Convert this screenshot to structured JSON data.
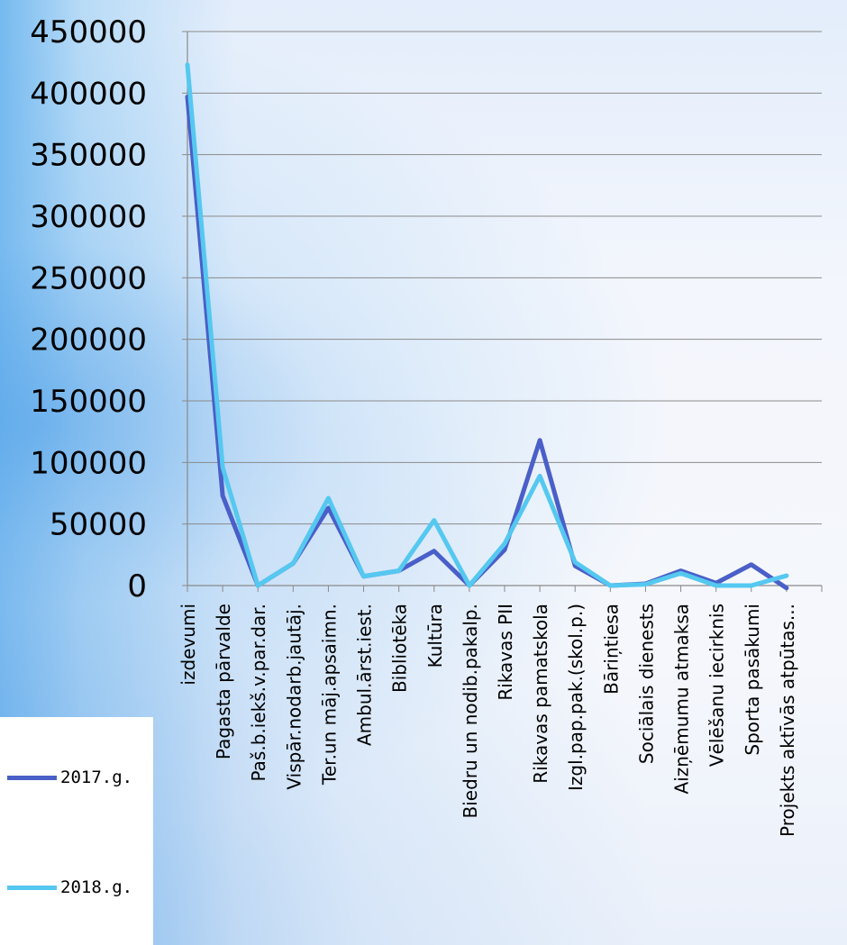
{
  "chart_data": {
    "type": "line",
    "categories": [
      "izdevumi",
      "Pagasta pārvalde",
      "Paš.b.iekš.v.par.dar.",
      "Vispār.nodarb.jautāj.",
      "Ter.un māj.apsaimn.",
      "Ambul.ārst.iest.",
      "Bibliotēka",
      "Kultūra",
      "Biedru un nodib.pakalp.",
      "Rikavas PII",
      "Rikavas pamatskola",
      "Izgl.pap.pak.(skol.p.)",
      "Bāriņtiesa",
      "Sociālais dienests",
      "Aizņēmumu atmaksa",
      "Vēlēšanu iecirknis",
      "Sporta pasākumi",
      "Projekts aktīvās atpūtas..."
    ],
    "series": [
      {
        "name": "2017.g.",
        "color": "#4a5fc8",
        "values": [
          397000,
          73000,
          0,
          18000,
          63000,
          7500,
          12000,
          28000,
          0,
          29000,
          118000,
          16000,
          0,
          1500,
          12000,
          2000,
          17000,
          -2000
        ]
      },
      {
        "name": "2018.g.",
        "color": "#55c8f0",
        "values": [
          423000,
          96000,
          0,
          18000,
          71000,
          7500,
          12000,
          53000,
          0,
          34000,
          89000,
          19000,
          0,
          1000,
          10000,
          0,
          0,
          8000
        ]
      }
    ],
    "y_ticks": [
      "450000",
      "400000",
      "350000",
      "300000",
      "250000",
      "200000",
      "150000",
      "100000",
      "50000",
      "0"
    ],
    "ylim": [
      0,
      450000
    ],
    "grid": true,
    "legend_position": "bottom-left"
  }
}
